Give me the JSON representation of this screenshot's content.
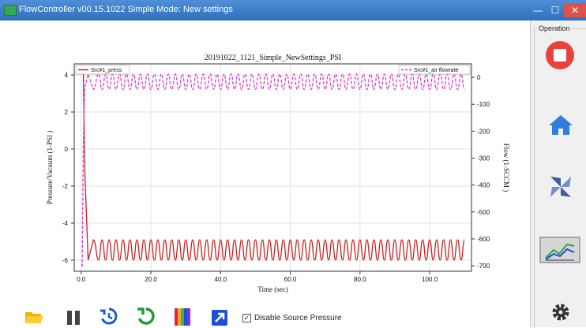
{
  "window": {
    "title": "FlowController v00.15.1022   Simple Mode: New settings",
    "minimize": "—",
    "maximize": "☐",
    "close": "✕"
  },
  "sidebar": {
    "title": "Operation",
    "buttons": [
      {
        "name": "stop-button",
        "icon": "stop-icon",
        "color": "#e8433a"
      },
      {
        "name": "home-button",
        "icon": "home-icon",
        "color": "#2f7fd8"
      },
      {
        "name": "flow-button",
        "icon": "flow-pinwheel-icon",
        "color": "#3a5fa8"
      },
      {
        "name": "chart-button",
        "icon": "chart-icon",
        "color": "#2aa84a"
      },
      {
        "name": "settings-button",
        "icon": "gear-icon",
        "color": "#333333"
      }
    ]
  },
  "toolbar": {
    "icons": [
      "folder-open-icon",
      "pause-icon",
      "history-icon",
      "refresh-icon",
      "color-palette-icon",
      "export-icon"
    ],
    "checkbox_label": "Disable Source Pressure",
    "checkbox_checked": true
  },
  "chart_data": {
    "type": "line",
    "title": "20191022_1121_Simple_NewSettings_PSI",
    "xlabel": "Time (sec)",
    "ylabel_left": "Pressure/Vacuum (1-PSI )",
    "ylabel_right": "Flow (1-SCCM )",
    "xlim": [
      -2,
      112
    ],
    "ylim_left": [
      -6.6,
      4.6
    ],
    "ylim_right": [
      -720,
      50
    ],
    "x_ticks": [
      "0.0",
      "20.0",
      "40.0",
      "60.0",
      "80.0",
      "100.0"
    ],
    "x_tick_values": [
      0,
      20,
      40,
      60,
      80,
      100
    ],
    "y_left_ticks": [
      "4",
      "2",
      "0",
      "-2",
      "-4",
      "-6"
    ],
    "y_left_tick_values": [
      4,
      2,
      0,
      -2,
      -4,
      -6
    ],
    "y_right_ticks": [
      "0",
      "-100",
      "-200",
      "-300",
      "-400",
      "-500",
      "-600",
      "-700"
    ],
    "y_right_tick_values": [
      0,
      -100,
      -200,
      -300,
      -400,
      -500,
      -600,
      -700
    ],
    "grid": true,
    "legend_left": "Src#1_press",
    "legend_right": "Src#1_air flowrate",
    "series": [
      {
        "name": "Src#1_press",
        "axis": "left",
        "color": "#cc1f1f",
        "style": "solid",
        "x": [
          0,
          0.3,
          0.6,
          1.0,
          2.0,
          3.5,
          5,
          6,
          7,
          8,
          9,
          10,
          11,
          12,
          13,
          14,
          15,
          16,
          17,
          18,
          19,
          20,
          21,
          22,
          23,
          24,
          25,
          26,
          27,
          28,
          29,
          30,
          31,
          32,
          33,
          34,
          35,
          36,
          37,
          38,
          39,
          40,
          41,
          42,
          43,
          44,
          45,
          46,
          47,
          48,
          49,
          50,
          51,
          52,
          53,
          54,
          55,
          56,
          57,
          58,
          59,
          60,
          61,
          62,
          63,
          64,
          65,
          66,
          67,
          68,
          69,
          70,
          71,
          72,
          73,
          74,
          75,
          76,
          77,
          78,
          79,
          80,
          81,
          82,
          83,
          84,
          85,
          86,
          87,
          88,
          89,
          90,
          91,
          92,
          93,
          94,
          95,
          96,
          97,
          98,
          99,
          100,
          101,
          102,
          103,
          104,
          105,
          106,
          107,
          108,
          109,
          110
        ],
        "y": [
          4.4,
          4.4,
          4.4,
          -1.0,
          -6.0,
          -4.9,
          -6.0,
          -4.9,
          -6.0,
          -4.9,
          -6.0,
          -4.9,
          -6.0,
          -4.9,
          -6.0,
          -4.9,
          -6.0,
          -4.9,
          -6.0,
          -4.9,
          -6.0,
          -4.9,
          -6.0,
          -4.9,
          -6.0,
          -4.9,
          -6.0,
          -4.9,
          -6.0,
          -4.9,
          -6.0,
          -4.9,
          -6.0,
          -4.9,
          -6.0,
          -4.9,
          -6.0,
          -4.9,
          -6.0,
          -4.9,
          -6.0,
          -4.9,
          -6.0,
          -4.9,
          -6.0,
          -4.9,
          -6.0,
          -4.9,
          -6.0,
          -4.9,
          -6.0,
          -4.9,
          -6.0,
          -4.9,
          -6.0,
          -4.9,
          -6.0,
          -4.9,
          -6.0,
          -4.9,
          -6.0,
          -4.9,
          -6.0,
          -4.9,
          -6.0,
          -4.9,
          -6.0,
          -4.9,
          -6.0,
          -4.9,
          -6.0,
          -4.9,
          -6.0,
          -4.9,
          -6.0,
          -4.9,
          -6.0,
          -4.9,
          -6.0,
          -4.9,
          -6.0,
          -4.9,
          -6.0,
          -4.9,
          -6.0,
          -4.9,
          -6.0,
          -4.9,
          -6.0,
          -4.9,
          -6.0,
          -4.9,
          -6.0,
          -4.9,
          -6.0,
          -4.9,
          -6.0,
          -4.9,
          -6.0,
          -4.9,
          -6.0,
          -4.9,
          -6.0,
          -4.9,
          -6.0,
          -4.9,
          -6.0,
          -4.9,
          -6.0,
          -4.9,
          -6.0,
          -4.9
        ]
      },
      {
        "name": "Src#1_air flowrate",
        "axis": "right",
        "color": "#d63fd0",
        "style": "dashed",
        "x": [
          0,
          0.3,
          0.6,
          1.0,
          2.0,
          3.5,
          5,
          6,
          7,
          8,
          9,
          10,
          11,
          12,
          13,
          14,
          15,
          16,
          17,
          18,
          19,
          20,
          21,
          22,
          23,
          24,
          25,
          26,
          27,
          28,
          29,
          30,
          31,
          32,
          33,
          34,
          35,
          36,
          37,
          38,
          39,
          40,
          41,
          42,
          43,
          44,
          45,
          46,
          47,
          48,
          49,
          50,
          51,
          52,
          53,
          54,
          55,
          56,
          57,
          58,
          59,
          60,
          61,
          62,
          63,
          64,
          65,
          66,
          67,
          68,
          69,
          70,
          71,
          72,
          73,
          74,
          75,
          76,
          77,
          78,
          79,
          80,
          81,
          82,
          83,
          84,
          85,
          86,
          87,
          88,
          89,
          90,
          91,
          92,
          93,
          94,
          95,
          96,
          97,
          98,
          99,
          100,
          101,
          102,
          103,
          104,
          105,
          106,
          107,
          108,
          109,
          110
        ],
        "y": [
          -700,
          -700,
          -240,
          -40,
          12,
          -45,
          12,
          -45,
          12,
          -45,
          12,
          -45,
          12,
          -45,
          12,
          -45,
          12,
          -45,
          12,
          -45,
          12,
          -45,
          12,
          -45,
          12,
          -45,
          12,
          -45,
          12,
          -45,
          12,
          -45,
          12,
          -45,
          12,
          -45,
          12,
          -45,
          12,
          -45,
          12,
          -45,
          12,
          -45,
          12,
          -45,
          12,
          -45,
          12,
          -45,
          12,
          -45,
          12,
          -45,
          12,
          -45,
          12,
          -45,
          12,
          -45,
          12,
          -45,
          12,
          -45,
          12,
          -45,
          12,
          -45,
          12,
          -45,
          12,
          -45,
          12,
          -45,
          12,
          -45,
          12,
          -45,
          12,
          -45,
          12,
          -45,
          12,
          -45,
          12,
          -45,
          12,
          -45,
          12,
          -45,
          12,
          -45,
          12,
          -45,
          12,
          -45,
          12,
          -45,
          12,
          -45,
          12,
          -45,
          12,
          -45,
          12,
          -45,
          12,
          -45,
          12,
          -45,
          12,
          -45
        ]
      }
    ]
  }
}
